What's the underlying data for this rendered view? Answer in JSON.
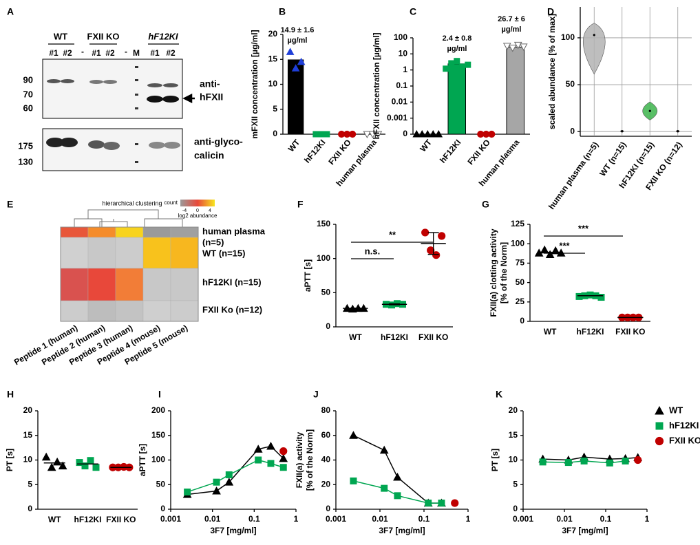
{
  "blot": {
    "panel": "A",
    "groups": [
      "WT",
      "FXII KO",
      "hF12KI"
    ],
    "lanes": [
      "#1",
      "#2",
      "-",
      "#1",
      "#2",
      "-",
      "M",
      "#1",
      "#2"
    ],
    "markers_top": [
      "90",
      "70",
      "60"
    ],
    "markers_bottom": [
      "175",
      "130"
    ],
    "antibodies": [
      [
        "anti-",
        "hFXII"
      ],
      [
        "anti-glyco-",
        "calicin"
      ]
    ]
  },
  "heatmap": {
    "panel": "E",
    "title": "hierarchical clustering",
    "legend_title": "count",
    "legend_label": "log2 abundance",
    "legend_ticks": [
      "-4",
      "0",
      "4"
    ],
    "rows": [
      [
        "human plasma",
        "(n=5)"
      ],
      [
        "WT (n=15)"
      ],
      [
        "hF12KI (n=15)"
      ],
      [
        "FXII Ko (n=12)"
      ]
    ],
    "columns": [
      "Peptide 1 (human)",
      "Peptide 2 (human)",
      "Peptide 3 (human)",
      "Peptide 4 (mouse)",
      "Peptide 5 (mouse)"
    ],
    "colors": [
      [
        "#e8573a",
        "#f58c2a",
        "#f7d31e",
        "#9a9a9a",
        "#a0a0a0"
      ],
      [
        "#d0d0d0",
        "#c8c8c8",
        "#cccccc",
        "#f8c21c",
        "#f7b71f"
      ],
      [
        "#d9524f",
        "#e8483a",
        "#f27d37",
        "#c8c8c8",
        "#c8c8c8"
      ],
      [
        "#cccccc",
        "#bdbdbd",
        "#c3c3c3",
        "#cfcfcf",
        "#cccccc"
      ]
    ]
  },
  "chart_data": [
    {
      "panel": "B",
      "type": "bar",
      "ylabel": "mFXII concentration [µg/ml]",
      "categories": [
        "WT",
        "hF12KI",
        "FXII KO",
        "human plasma"
      ],
      "values": [
        14.9,
        0,
        0,
        0
      ],
      "colors": [
        "#000000",
        "#00a651",
        "#c00000",
        "#a6a6a6"
      ],
      "points": [
        [
          16.5,
          13.2,
          14.5
        ],
        [
          0,
          0,
          0
        ],
        [
          0,
          0,
          0
        ],
        [
          0,
          0,
          0
        ]
      ],
      "point_colors": [
        "#1f3fd8",
        "#00a651",
        "#c00000",
        "#a6a6a6"
      ],
      "markers": [
        "triangle",
        "square",
        "circle",
        "triangle-down"
      ],
      "ylim": [
        0,
        20
      ],
      "yticks": [
        0,
        5,
        10,
        15,
        20
      ],
      "annotations": [
        [
          "14.9 ± 1.6",
          "µg/ml"
        ]
      ]
    },
    {
      "panel": "C",
      "type": "bar",
      "log": true,
      "ylabel": "hFXII concentration [µg/ml]",
      "categories": [
        "WT",
        "hF12KI",
        "FXII KO",
        "human plasma"
      ],
      "values": [
        0,
        2.4,
        0,
        26.7
      ],
      "colors": [
        "#000000",
        "#00a651",
        "#c00000",
        "#a6a6a6"
      ],
      "points": [
        [
          0,
          0,
          0,
          0,
          0
        ],
        [
          1.2,
          2.6,
          3.6,
          1.6,
          2.1
        ],
        [
          0,
          0,
          0
        ],
        [
          31,
          24,
          36,
          28
        ]
      ],
      "point_colors": [
        "#000000",
        "#00a651",
        "#c00000",
        "#a6a6a6"
      ],
      "markers": [
        "triangle",
        "square",
        "circle",
        "triangle-down"
      ],
      "ylim": [
        0.0001,
        100
      ],
      "yticks": [
        {
          "value": 0.0001,
          "label": "0"
        },
        0.001,
        0.01,
        0.1,
        1,
        10,
        100
      ],
      "annotations": [
        [
          "2.4 ± 0.8",
          "µg/ml"
        ],
        [
          "26.7 ± 6",
          "µg/ml"
        ]
      ]
    },
    {
      "panel": "D",
      "type": "violin",
      "ylabel": "scaled abundance [% of max]",
      "grid": true,
      "categories": [
        "human plasma (n=5)",
        "WT (n=15)",
        "hF12KI (n=15)",
        "FXII KO (n=12)"
      ],
      "min": [
        62,
        0,
        13,
        0
      ],
      "max": [
        115,
        0.8,
        31,
        0.8
      ],
      "median": [
        103,
        0.3,
        22,
        0.3
      ],
      "colors": [
        "#b3b3b3",
        "#1a1a1a",
        "#3cb44b",
        "#8b1a1a"
      ],
      "ylim": [
        -5,
        133
      ],
      "yticks": [
        0,
        50,
        100
      ]
    },
    {
      "panel": "F",
      "type": "dot",
      "ylabel": "aPTT [s]",
      "categories": [
        "WT",
        "hF12KI",
        "FXII KO"
      ],
      "values": [
        [
          27,
          26,
          27,
          27
        ],
        [
          33,
          32,
          34,
          33
        ],
        [
          138,
          112,
          105,
          133
        ]
      ],
      "means": [
        27,
        33,
        122
      ],
      "sd": [
        0.5,
        0.8,
        16
      ],
      "colors": [
        "#000000",
        "#00a651",
        "#c00000"
      ],
      "markers": [
        "triangle",
        "square",
        "circle"
      ],
      "ylim": [
        0,
        150
      ],
      "yticks": [
        0,
        50,
        100,
        150
      ],
      "annotations": [
        "**",
        "n.s."
      ]
    },
    {
      "panel": "G",
      "type": "dot",
      "ylabel": [
        "FXII(a) clotting activity",
        "[% of the Norm]"
      ],
      "categories": [
        "WT",
        "hF12KI",
        "FXII KO"
      ],
      "values": [
        [
          88,
          92,
          86,
          91,
          88
        ],
        [
          32,
          33,
          34,
          33,
          31
        ],
        [
          5,
          5,
          5,
          5
        ]
      ],
      "means": [
        89,
        33,
        5
      ],
      "colors": [
        "#000000",
        "#00a651",
        "#c00000"
      ],
      "markers": [
        "triangle",
        "square",
        "circle"
      ],
      "ylim": [
        0,
        125
      ],
      "yticks": [
        0,
        25,
        50,
        75,
        100,
        125
      ],
      "annotations": [
        "***",
        "***"
      ]
    },
    {
      "panel": "H",
      "type": "dot",
      "ylabel": "PT [s]",
      "categories": [
        "WT",
        "hF12KI",
        "FXII KO"
      ],
      "values": [
        [
          10.6,
          8.5,
          9.6,
          8.8
        ],
        [
          9.5,
          8.8,
          9.9,
          8.5
        ],
        [
          8.5,
          8.5,
          8.6,
          8.5
        ]
      ],
      "means": [
        9.4,
        9.2,
        8.5
      ],
      "colors": [
        "#000000",
        "#00a651",
        "#c00000"
      ],
      "markers": [
        "triangle",
        "square",
        "circle"
      ],
      "ylim": [
        0,
        20
      ],
      "yticks": [
        0,
        5,
        10,
        15,
        20
      ]
    },
    {
      "panel": "I",
      "type": "line",
      "logx": true,
      "ylabel": "aPTT [s]",
      "xlabel": "3F7 [mg/ml]",
      "xlim": [
        0.001,
        1
      ],
      "xticks": [
        0.001,
        0.01,
        0.1,
        1
      ],
      "ylim": [
        0,
        200
      ],
      "yticks": [
        0,
        50,
        100,
        150,
        200
      ],
      "series": [
        {
          "name": "WT",
          "color": "#000000",
          "marker": "triangle",
          "x": [
            0.0025,
            0.0125,
            0.025,
            0.125,
            0.25,
            0.5
          ],
          "values": [
            30,
            37,
            55,
            122,
            128,
            103
          ]
        },
        {
          "name": "hF12KI",
          "color": "#00a651",
          "marker": "square",
          "x": [
            0.0025,
            0.0125,
            0.025,
            0.125,
            0.25,
            0.5
          ],
          "values": [
            35,
            55,
            70,
            100,
            93,
            85
          ]
        },
        {
          "name": "FXII KO",
          "color": "#c00000",
          "marker": "circle",
          "x": [
            0.5
          ],
          "values": [
            118
          ]
        }
      ]
    },
    {
      "panel": "J",
      "type": "line",
      "logx": true,
      "ylabel": [
        "FXII(a) activity",
        "[% of the Norm]"
      ],
      "xlabel": "3F7 [mg/ml]",
      "xlim": [
        0.001,
        1
      ],
      "xticks": [
        0.001,
        0.01,
        0.1,
        1
      ],
      "ylim": [
        0,
        80
      ],
      "yticks": [
        0,
        20,
        40,
        60,
        80
      ],
      "series": [
        {
          "name": "WT",
          "color": "#000000",
          "marker": "triangle",
          "x": [
            0.0025,
            0.0125,
            0.025,
            0.125,
            0.25
          ],
          "values": [
            60,
            48,
            26,
            5,
            5
          ]
        },
        {
          "name": "hF12KI",
          "color": "#00a651",
          "marker": "square",
          "x": [
            0.0025,
            0.0125,
            0.025,
            0.125,
            0.25
          ],
          "values": [
            23,
            17,
            11,
            5,
            5
          ]
        },
        {
          "name": "FXII KO",
          "color": "#c00000",
          "marker": "circle",
          "x": [
            0.5
          ],
          "values": [
            5
          ]
        }
      ]
    },
    {
      "panel": "K",
      "type": "line",
      "logx": true,
      "ylabel": "PT [s]",
      "xlabel": "3F7 [mg/ml]",
      "legend": "right",
      "xlim": [
        0.001,
        1
      ],
      "xticks": [
        0.001,
        0.01,
        0.1,
        1
      ],
      "ylim": [
        0,
        20
      ],
      "yticks": [
        0,
        5,
        10,
        15,
        20
      ],
      "series": [
        {
          "name": "WT",
          "color": "#000000",
          "marker": "triangle",
          "x": [
            0.003,
            0.0125,
            0.03,
            0.125,
            0.3,
            0.6
          ],
          "values": [
            10.2,
            10,
            10.6,
            10.2,
            10.3,
            10.5
          ]
        },
        {
          "name": "hF12KI",
          "color": "#00a651",
          "marker": "square",
          "x": [
            0.003,
            0.0125,
            0.03,
            0.125,
            0.3
          ],
          "values": [
            9.6,
            9.5,
            9.8,
            9.4,
            9.8
          ]
        },
        {
          "name": "FXII KO",
          "color": "#c00000",
          "marker": "circle",
          "x": [
            0.6
          ],
          "values": [
            10
          ]
        }
      ]
    }
  ]
}
